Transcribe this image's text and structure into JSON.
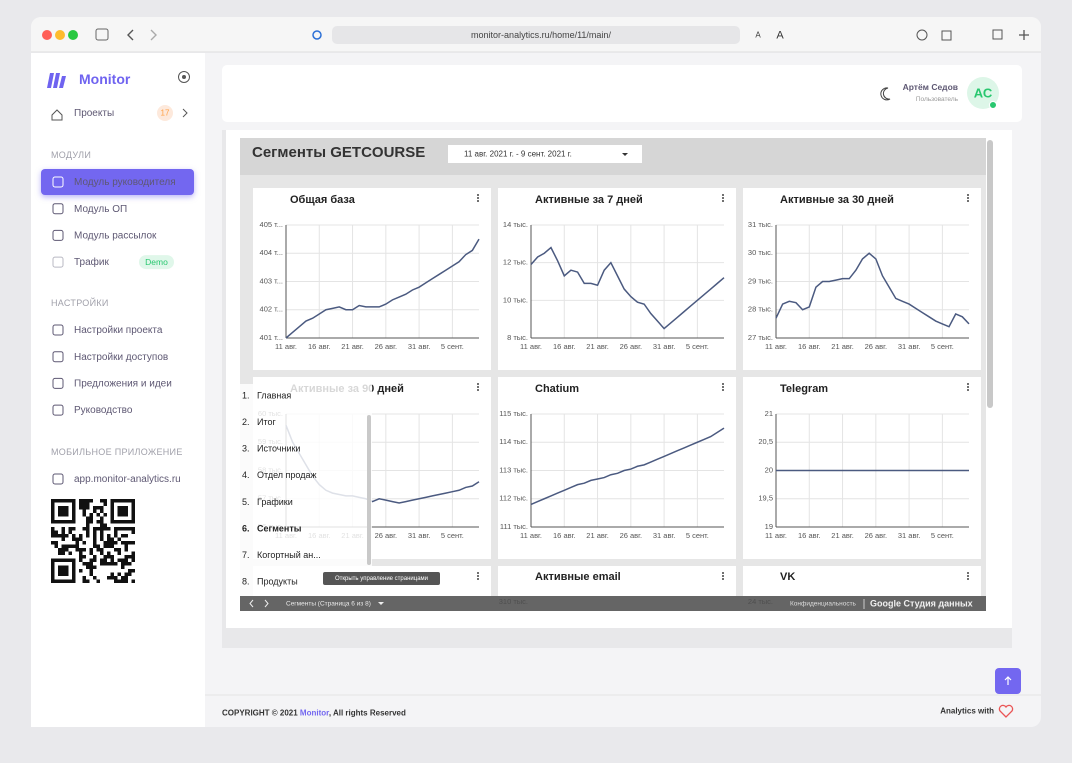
{
  "browser": {
    "url": "monitor-analytics.ru/home/11/main/",
    "text_small": "A",
    "text_large": "A"
  },
  "sidebar": {
    "brand": "Monitor",
    "projects": {
      "label": "Проекты",
      "count": 17
    },
    "sections": [
      {
        "title": "МОДУЛИ",
        "items": [
          {
            "label": "Модуль руководителя",
            "active": true
          },
          {
            "label": "Модуль ОП"
          },
          {
            "label": "Модуль рассылок"
          },
          {
            "label": "Трафик",
            "badge": "Demo",
            "disabled": true
          }
        ]
      },
      {
        "title": "НАСТРОЙКИ",
        "items": [
          {
            "label": "Настройки проекта"
          },
          {
            "label": "Настройки доступов"
          },
          {
            "label": "Предложения и идеи"
          },
          {
            "label": "Руководство"
          }
        ]
      },
      {
        "title": "МОБИЛЬНОЕ ПРИЛОЖЕНИЕ",
        "items": [
          {
            "label": "app.monitor-analytics.ru"
          }
        ]
      }
    ]
  },
  "header": {
    "user_name": "Артём Седов",
    "role": "Пользователь",
    "initials": "АС"
  },
  "report": {
    "title": "Сегменты GETCOURSE",
    "date_range": "11 авг. 2021 г. - 9 сент. 2021 г.",
    "charts": [
      {
        "type": "line",
        "title": "Общая база",
        "categories": [
          "11 авг.",
          null,
          null,
          null,
          null,
          "16 авг.",
          null,
          null,
          null,
          null,
          "21 авг.",
          null,
          null,
          null,
          null,
          "26 авг.",
          null,
          null,
          null,
          null,
          "31 авг.",
          null,
          null,
          null,
          null,
          "5 сент.",
          null,
          null,
          null,
          null
        ],
        "values": [
          401.0,
          401.2,
          401.4,
          401.6,
          401.7,
          401.85,
          402.0,
          402.05,
          402.1,
          402.0,
          402.0,
          402.15,
          402.1,
          402.1,
          402.1,
          402.2,
          402.35,
          402.45,
          402.55,
          402.7,
          402.8,
          402.95,
          403.1,
          403.25,
          403.4,
          403.55,
          403.7,
          403.95,
          404.1,
          404.5
        ],
        "ylim": [
          401,
          405
        ],
        "yticks": [
          {
            "value": 401,
            "label": "401 т..."
          },
          {
            "value": 402,
            "label": "402 т..."
          },
          {
            "value": 403,
            "label": "403 т..."
          },
          {
            "value": 404,
            "label": "404 т..."
          },
          {
            "value": 405,
            "label": "405 т..."
          }
        ],
        "color": "#4b5a80",
        "grid": true
      },
      {
        "type": "line",
        "title": "Активные за 7 дней",
        "categories": [
          "11 авг.",
          null,
          null,
          null,
          null,
          "16 авг.",
          null,
          null,
          null,
          null,
          "21 авг.",
          null,
          null,
          null,
          null,
          "26 авг.",
          null,
          null,
          null,
          null,
          "31 авг.",
          null,
          null,
          null,
          null,
          "5 сент.",
          null,
          null,
          null,
          null
        ],
        "values": [
          11.9,
          12.3,
          12.5,
          12.8,
          12.1,
          11.3,
          11.6,
          11.5,
          10.9,
          10.9,
          10.8,
          11.6,
          12.0,
          11.3,
          10.6,
          10.2,
          9.9,
          9.8,
          9.3,
          8.9,
          8.5,
          8.8,
          9.1,
          9.4,
          9.7,
          10.0,
          10.3,
          10.6,
          10.9,
          11.2
        ],
        "ylim": [
          8,
          14
        ],
        "yticks": [
          {
            "value": 8,
            "label": "8 тыс."
          },
          {
            "value": 10,
            "label": "10 тыс."
          },
          {
            "value": 12,
            "label": "12 тыс."
          },
          {
            "value": 14,
            "label": "14 тыс."
          }
        ],
        "color": "#4b5a80",
        "grid": true
      },
      {
        "type": "line",
        "title": "Активные за 30 дней",
        "categories": [
          "11 авг.",
          null,
          null,
          null,
          null,
          "16 авг.",
          null,
          null,
          null,
          null,
          "21 авг.",
          null,
          null,
          null,
          null,
          "26 авг.",
          null,
          null,
          null,
          null,
          "31 авг.",
          null,
          null,
          null,
          null,
          "5 сент.",
          null,
          null,
          null,
          null
        ],
        "values": [
          27.7,
          28.2,
          28.3,
          28.25,
          28.0,
          28.1,
          28.8,
          29.0,
          29.0,
          29.05,
          29.1,
          29.1,
          29.4,
          29.8,
          30.0,
          29.8,
          29.2,
          28.8,
          28.4,
          28.3,
          28.2,
          28.05,
          27.9,
          27.75,
          27.6,
          27.5,
          27.4,
          27.85,
          27.75,
          27.5
        ],
        "ylim": [
          27,
          31
        ],
        "yticks": [
          {
            "value": 27,
            "label": "27 тыс."
          },
          {
            "value": 28,
            "label": "28 тыс."
          },
          {
            "value": 29,
            "label": "29 тыс."
          },
          {
            "value": 30,
            "label": "30 тыс."
          },
          {
            "value": 31,
            "label": "31 тыс."
          }
        ],
        "color": "#4b5a80",
        "grid": true
      },
      {
        "type": "line",
        "title": "Активные за 90 дней",
        "categories": [
          "11 авг.",
          null,
          null,
          null,
          null,
          "16 авг.",
          null,
          null,
          null,
          null,
          "21 авг.",
          null,
          null,
          null,
          null,
          "26 авг.",
          null,
          null,
          null,
          null,
          "31 авг.",
          null,
          null,
          null,
          null,
          "5 сент.",
          null,
          null,
          null,
          null
        ],
        "values": [
          59.6,
          59.0,
          58.6,
          58.2,
          57.8,
          57.5,
          57.3,
          57.2,
          57.15,
          57.1,
          57.1,
          57.05,
          57.0,
          56.9,
          57.0,
          56.95,
          56.9,
          56.85,
          56.9,
          56.95,
          57.0,
          57.05,
          57.1,
          57.15,
          57.2,
          57.25,
          57.3,
          57.4,
          57.45,
          57.6
        ],
        "ylim": [
          56,
          60
        ],
        "yticks": [
          {
            "value": 56,
            "label": "56 тыс."
          },
          {
            "value": 57,
            "label": "57 тыс."
          },
          {
            "value": 58,
            "label": "58 тыс."
          },
          {
            "value": 59,
            "label": "59 тыс."
          },
          {
            "value": 60,
            "label": "60 тыс."
          }
        ],
        "color": "#4b5a80",
        "grid": true
      },
      {
        "type": "line",
        "title": "Chatium",
        "categories": [
          "11 авг.",
          null,
          null,
          null,
          null,
          "16 авг.",
          null,
          null,
          null,
          null,
          "21 авг.",
          null,
          null,
          null,
          null,
          "26 авг.",
          null,
          null,
          null,
          null,
          "31 авг.",
          null,
          null,
          null,
          null,
          "5 сент.",
          null,
          null,
          null,
          null
        ],
        "values": [
          111.8,
          111.9,
          112.0,
          112.1,
          112.2,
          112.3,
          112.4,
          112.5,
          112.55,
          112.65,
          112.7,
          112.75,
          112.85,
          112.9,
          113.0,
          113.05,
          113.15,
          113.2,
          113.3,
          113.4,
          113.5,
          113.6,
          113.7,
          113.8,
          113.9,
          114.0,
          114.1,
          114.2,
          114.35,
          114.5
        ],
        "ylim": [
          111,
          115
        ],
        "yticks": [
          {
            "value": 111,
            "label": "111 тыс."
          },
          {
            "value": 112,
            "label": "112 тыс."
          },
          {
            "value": 113,
            "label": "113 тыс."
          },
          {
            "value": 114,
            "label": "114 тыс."
          },
          {
            "value": 115,
            "label": "115 тыс."
          }
        ],
        "color": "#4b5a80",
        "grid": true
      },
      {
        "type": "line",
        "title": "Telegram",
        "categories": [
          "11 авг.",
          null,
          null,
          null,
          null,
          "16 авг.",
          null,
          null,
          null,
          null,
          "21 авг.",
          null,
          null,
          null,
          null,
          "26 авг.",
          null,
          null,
          null,
          null,
          "31 авг.",
          null,
          null,
          null,
          null,
          "5 сент.",
          null,
          null,
          null,
          null
        ],
        "values": [
          20,
          20,
          20,
          20,
          20,
          20,
          20,
          20,
          20,
          20,
          20,
          20,
          20,
          20,
          20,
          20,
          20,
          20,
          20,
          20,
          20,
          20,
          20,
          20,
          20,
          20,
          20,
          20,
          20,
          20
        ],
        "ylim": [
          19,
          21
        ],
        "yticks": [
          19,
          {
            "value": 19.5,
            "label": "19,5"
          },
          20,
          {
            "value": 20.5,
            "label": "20,5"
          },
          21
        ],
        "color": "#4b5a80",
        "grid": true
      }
    ],
    "cut_charts": [
      {
        "title": "Активные email",
        "top_tick": "310 тыс."
      },
      {
        "title": "VK",
        "top_tick": "24 тыс."
      }
    ],
    "nav": [
      {
        "num": "1.",
        "label": "Главная"
      },
      {
        "num": "2.",
        "label": "Итог"
      },
      {
        "num": "3.",
        "label": "Источники"
      },
      {
        "num": "4.",
        "label": "Отдел продаж"
      },
      {
        "num": "5.",
        "label": "Графики"
      },
      {
        "num": "6.",
        "label": "Сегменты",
        "active": true
      },
      {
        "num": "7.",
        "label": "Когортный ан..."
      },
      {
        "num": "8.",
        "label": "Продукты"
      }
    ],
    "tooltip": "Открыть управление страницами",
    "bar": {
      "page": "Сегменты (Страница 6 из 8)",
      "privacy": "Конфиденциальность",
      "brand": "Google Студия данных"
    }
  },
  "footer": {
    "prefix": "COPYRIGHT © 2021 ",
    "link": "Monitor",
    "suffix": ", All rights Reserved",
    "right": "Analytics with"
  }
}
